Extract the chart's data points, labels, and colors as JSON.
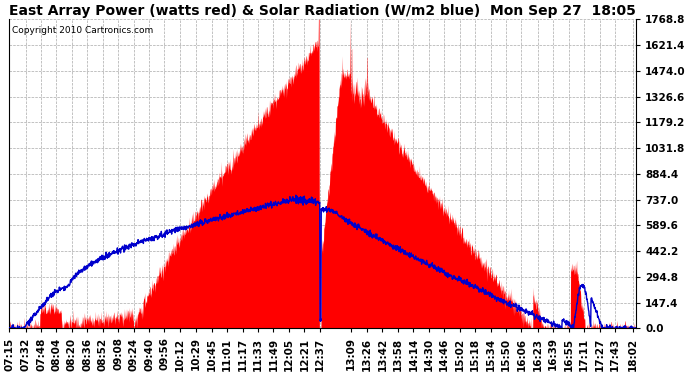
{
  "title": "East Array Power (watts red) & Solar Radiation (W/m2 blue)  Mon Sep 27  18:05",
  "copyright": "Copyright 2010 Cartronics.com",
  "yticks": [
    0.0,
    147.4,
    294.8,
    442.2,
    589.6,
    737.0,
    884.4,
    1031.8,
    1179.2,
    1326.6,
    1474.0,
    1621.4,
    1768.8
  ],
  "ylim": [
    0.0,
    1768.8
  ],
  "x_labels": [
    "07:15",
    "07:32",
    "07:48",
    "08:04",
    "08:20",
    "08:36",
    "08:52",
    "09:08",
    "09:24",
    "09:40",
    "09:56",
    "10:12",
    "10:29",
    "10:45",
    "11:01",
    "11:17",
    "11:33",
    "11:49",
    "12:05",
    "12:21",
    "12:37",
    "13:09",
    "13:26",
    "13:42",
    "13:58",
    "14:14",
    "14:30",
    "14:46",
    "15:02",
    "15:18",
    "15:34",
    "15:50",
    "16:06",
    "16:23",
    "16:39",
    "16:55",
    "17:11",
    "17:27",
    "17:43",
    "18:02"
  ],
  "bg_color": "#ffffff",
  "plot_bg_color": "#ffffff",
  "grid_color": "#aaaaaa",
  "red_color": "#ff0000",
  "blue_color": "#0000cc",
  "title_fontsize": 10,
  "tick_fontsize": 7.5
}
